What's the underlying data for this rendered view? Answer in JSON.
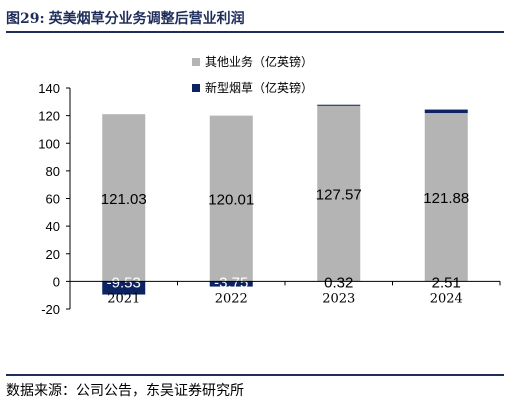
{
  "figure": {
    "label": "图29:",
    "title": "英美烟草分业务调整后营业利润",
    "source": "数据来源：公司公告，东吴证券研究所"
  },
  "colors": {
    "other_business": "#b4b4b4",
    "new_tobacco": "#0d2260",
    "title": "#1f2d5a"
  },
  "chart_data": {
    "type": "bar",
    "stacked": true,
    "categories": [
      "2021",
      "2022",
      "2023",
      "2024"
    ],
    "series": [
      {
        "name": "其他业务（亿英镑）",
        "values": [
          121.03,
          120.01,
          127.57,
          121.88
        ],
        "labels": [
          "121.03",
          "120.01",
          "127.57",
          "121.88"
        ]
      },
      {
        "name": "新型烟草（亿英镑）",
        "values": [
          -9.53,
          -3.75,
          0.32,
          2.51
        ],
        "labels": [
          "-9.53",
          "-3.75",
          "0.32",
          "2.51"
        ]
      }
    ],
    "ylim": [
      -20,
      140
    ],
    "yticks": [
      "140",
      "120",
      "100",
      "80",
      "60",
      "40",
      "20",
      "0",
      "-20"
    ],
    "legend_position": "top-right",
    "grid": false
  }
}
